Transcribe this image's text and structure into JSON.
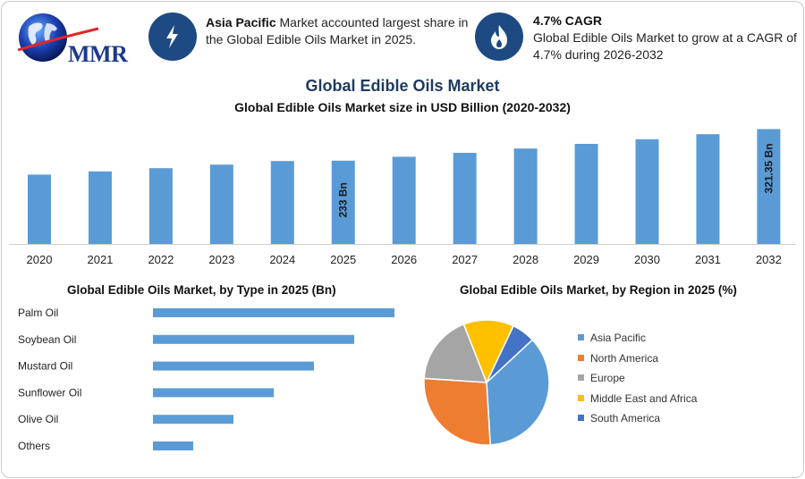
{
  "brand": {
    "name": "MMR"
  },
  "highlights": [
    {
      "bold": "Asia Pacific",
      "text": " Market accounted largest share in the Global Edible Oils Market in 2025.",
      "icon": "lightning-icon"
    },
    {
      "bold": "4.7% CAGR",
      "text": "Global Edible Oils Market to grow at a CAGR of 4.7% during 2026-2032",
      "icon": "flame-icon"
    }
  ],
  "title": "Global Edible Oils Market",
  "colors": {
    "bar": "#5b9bd5",
    "badge": "#1d4a82",
    "title": "#1f3a5f"
  },
  "chart_data": [
    {
      "type": "bar",
      "title": "Global Edible Oils Market size in USD Billion (2020-2032)",
      "categories": [
        "2020",
        "2021",
        "2022",
        "2023",
        "2024",
        "2025",
        "2026",
        "2027",
        "2028",
        "2029",
        "2030",
        "2031",
        "2032"
      ],
      "values": [
        194,
        203,
        212,
        222,
        232,
        233,
        244,
        255,
        267,
        280,
        293,
        307,
        321.35
      ],
      "data_labels": {
        "2025": "233 Bn",
        "2032": "321.35 Bn"
      },
      "ylim": [
        0,
        330
      ]
    },
    {
      "type": "bar",
      "orientation": "horizontal",
      "title": "Global Edible Oils Market, by Type in 2025 (Bn)",
      "categories": [
        "Palm Oil",
        "Soybean Oil",
        "Mustard Oil",
        "Sunflower Oil",
        "Olive Oil",
        "Others"
      ],
      "values": [
        90,
        75,
        60,
        45,
        30,
        15
      ],
      "xlim": [
        0,
        100
      ]
    },
    {
      "type": "pie",
      "title": "Global Edible Oils Market, by Region in 2025 (%)",
      "labels": [
        "Asia Pacific",
        "North America",
        "Europe",
        "Middle East and Africa",
        "South America"
      ],
      "values": [
        36,
        27,
        18,
        13,
        6
      ],
      "colors": [
        "#5b9bd5",
        "#ed7d31",
        "#a5a5a5",
        "#ffc000",
        "#4472c4"
      ],
      "legend": "right"
    }
  ]
}
